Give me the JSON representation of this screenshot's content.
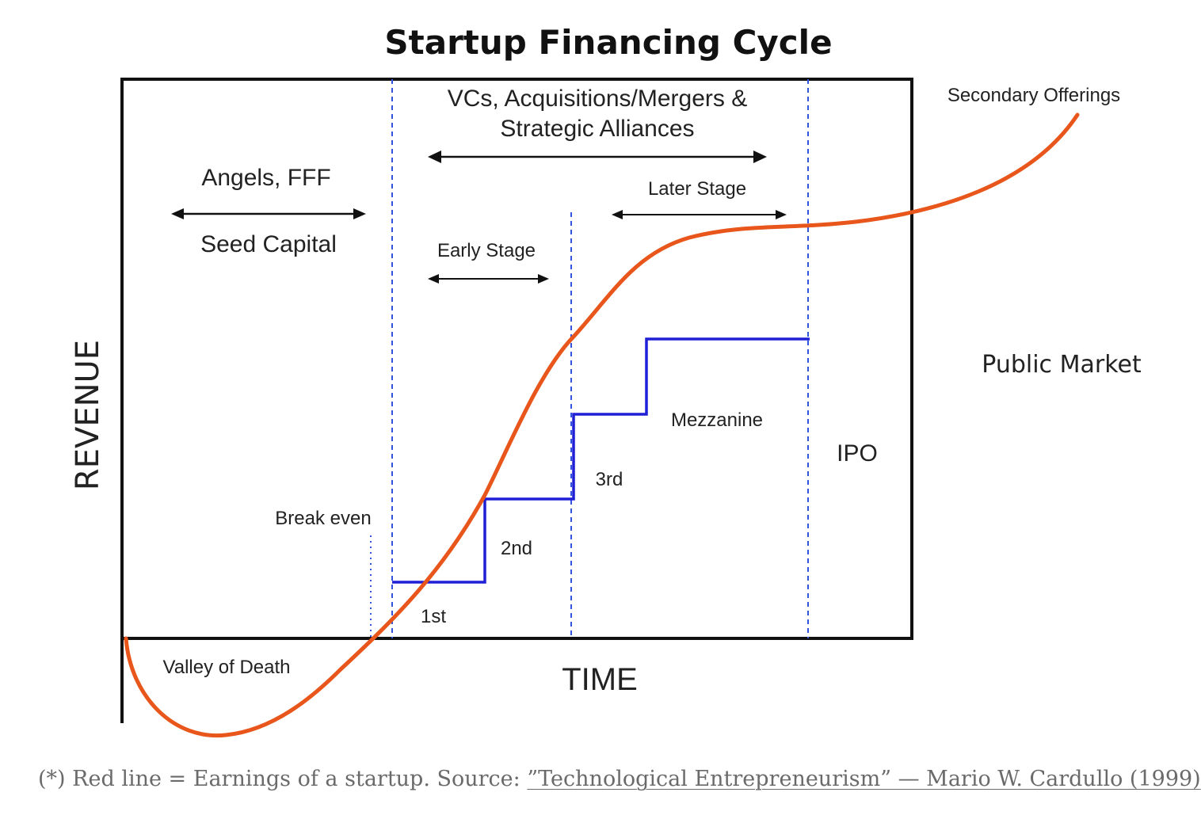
{
  "diagram": {
    "title": "Startup Financing Cycle",
    "y_axis_label": "REVENUE",
    "x_axis_label": "TIME",
    "phases": {
      "angels_label": "Angels, FFF",
      "seed_label": "Seed Capital",
      "vc_line1": "VCs, Acquisitions/Mergers &",
      "vc_line2": "Strategic Alliances",
      "early_stage": "Early Stage",
      "later_stage": "Later Stage",
      "secondary_offerings": "Secondary Offerings",
      "public_market": "Public Market",
      "ipo": "IPO"
    },
    "annotations": {
      "break_even": "Break even",
      "valley_of_death": "Valley of Death"
    },
    "rounds": [
      "1st",
      "2nd",
      "3rd",
      "Mezzanine"
    ],
    "colors": {
      "earnings_curve": "#e8561c",
      "funding_steps": "#1f1fd6",
      "divider_lines": "#3355dd",
      "frame": "#111111"
    }
  },
  "caption": {
    "prefix": "(*) Red line = Earnings of a startup. Source: ",
    "link_text": "”Technological Entrepreneurism” — Mario W. Cardullo (1999)"
  }
}
